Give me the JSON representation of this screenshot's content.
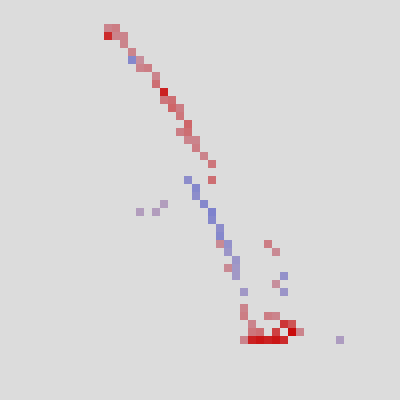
{
  "chart_data": {
    "type": "heatmap",
    "xlim": [
      0,
      50
    ],
    "ylim": [
      0,
      50
    ],
    "clim": [
      -1,
      1
    ],
    "tick_labels": false,
    "cells": [
      [
        13,
        4,
        0.8
      ],
      [
        14,
        4,
        0.3
      ],
      [
        13,
        3,
        0.3
      ],
      [
        14,
        3,
        0.35
      ],
      [
        15,
        4,
        0.3
      ],
      [
        15,
        5,
        0.3
      ],
      [
        16,
        6,
        0.3
      ],
      [
        16,
        7,
        -0.45
      ],
      [
        17,
        7,
        0.2
      ],
      [
        17,
        8,
        0.3
      ],
      [
        18,
        8,
        0.35
      ],
      [
        19,
        9,
        0.3
      ],
      [
        19,
        10,
        0.45
      ],
      [
        20,
        11,
        0.85
      ],
      [
        20,
        12,
        0.4
      ],
      [
        21,
        12,
        0.45
      ],
      [
        21,
        13,
        0.5
      ],
      [
        22,
        13,
        0.35
      ],
      [
        22,
        14,
        0.4
      ],
      [
        23,
        15,
        0.5
      ],
      [
        22,
        16,
        0.35
      ],
      [
        23,
        16,
        0.45
      ],
      [
        23,
        17,
        0.3
      ],
      [
        24,
        17,
        0.3
      ],
      [
        24,
        18,
        0.35
      ],
      [
        25,
        19,
        0.3
      ],
      [
        26,
        20,
        0.4
      ],
      [
        26,
        22,
        0.45
      ],
      [
        23,
        22,
        -0.4
      ],
      [
        24,
        23,
        -0.45
      ],
      [
        24,
        24,
        -0.4
      ],
      [
        25,
        25,
        -0.45
      ],
      [
        26,
        26,
        -0.5
      ],
      [
        26,
        27,
        -0.45
      ],
      [
        27,
        28,
        -0.4
      ],
      [
        27,
        29,
        -0.45
      ],
      [
        28,
        30,
        -0.35
      ],
      [
        28,
        31,
        -0.3
      ],
      [
        29,
        32,
        -0.3
      ],
      [
        29,
        33,
        -0.25
      ],
      [
        29,
        34,
        -0.25
      ],
      [
        30,
        36,
        -0.25
      ],
      [
        27,
        30,
        0.25
      ],
      [
        28,
        33,
        0.25
      ],
      [
        30,
        38,
        0.3
      ],
      [
        30,
        39,
        0.35
      ],
      [
        31,
        40,
        0.3
      ],
      [
        33,
        30,
        0.35
      ],
      [
        34,
        31,
        0.25
      ],
      [
        35,
        34,
        -0.35
      ],
      [
        35,
        36,
        -0.3
      ],
      [
        34,
        35,
        0.2
      ],
      [
        33,
        39,
        0.35
      ],
      [
        34,
        39,
        0.3
      ],
      [
        36,
        40,
        0.6
      ],
      [
        35,
        40,
        0.75
      ],
      [
        34,
        41,
        0.7
      ],
      [
        36,
        41,
        0.95
      ],
      [
        31,
        42,
        0.85
      ],
      [
        32,
        42,
        0.9
      ],
      [
        33,
        42,
        0.85
      ],
      [
        34,
        42,
        0.9
      ],
      [
        35,
        42,
        0.8
      ],
      [
        31,
        41,
        0.4
      ],
      [
        32,
        41,
        0.45
      ],
      [
        37,
        41,
        0.3
      ],
      [
        30,
        42,
        0.3
      ],
      [
        20,
        25,
        -0.1
      ],
      [
        19,
        26,
        -0.1
      ],
      [
        17,
        26,
        -0.1
      ],
      [
        42,
        42,
        -0.15
      ]
    ]
  }
}
